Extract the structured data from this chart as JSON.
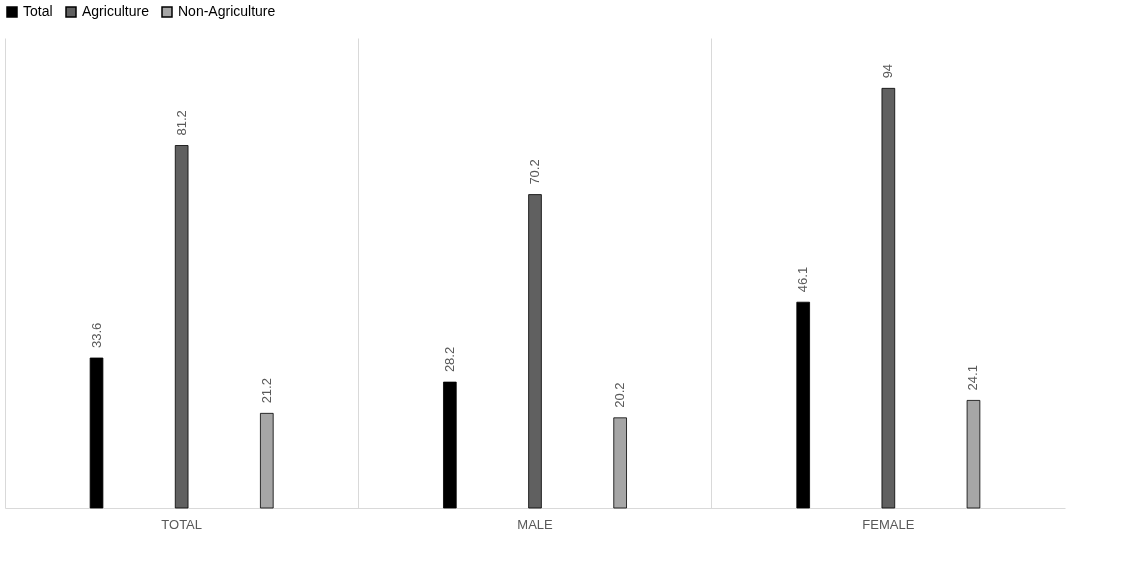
{
  "chart_data": {
    "type": "bar",
    "categories": [
      "TOTAL",
      "MALE",
      "FEMALE"
    ],
    "series": [
      {
        "name": "Total",
        "color": "#000000",
        "values": [
          33.6,
          28.2,
          46.1
        ]
      },
      {
        "name": "Agriculture",
        "color": "#606060",
        "values": [
          81.2,
          70.2,
          94
        ]
      },
      {
        "name": "Non-Agriculture",
        "color": "#a6a6a6",
        "values": [
          21.2,
          20.2,
          24.1
        ]
      }
    ],
    "data_labels": true,
    "legend": "top",
    "grid": "x",
    "tick_labels": "x"
  }
}
